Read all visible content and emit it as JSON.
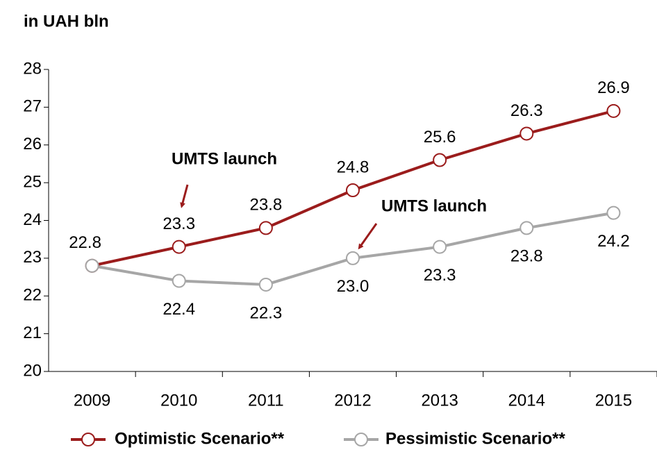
{
  "chart_data": {
    "type": "line",
    "title": "in UAH bln",
    "categories": [
      "2009",
      "2010",
      "2011",
      "2012",
      "2013",
      "2014",
      "2015"
    ],
    "series": [
      {
        "name": "Optimistic Scenario**",
        "color": "#9b1c1c",
        "values": [
          22.8,
          23.3,
          23.8,
          24.8,
          25.6,
          26.3,
          26.9
        ],
        "value_labels": [
          "22.8",
          "23.3",
          "23.8",
          "24.8",
          "25.6",
          "26.3",
          "26.9"
        ]
      },
      {
        "name": "Pessimistic Scenario**",
        "color": "#a6a6a6",
        "values": [
          22.8,
          22.4,
          22.3,
          23.0,
          23.3,
          23.8,
          24.2
        ],
        "value_labels": [
          null,
          "22.4",
          "22.3",
          "23.0",
          "23.3",
          "23.8",
          "24.2"
        ]
      }
    ],
    "ylim": [
      20,
      28
    ],
    "yticks": [
      20,
      21,
      22,
      23,
      24,
      25,
      26,
      27,
      28
    ],
    "annotations": [
      {
        "text": "UMTS launch"
      },
      {
        "text": "UMTS launch"
      }
    ],
    "legend": "bottom"
  }
}
